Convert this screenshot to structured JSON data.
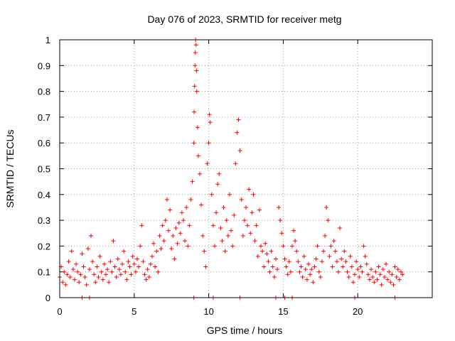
{
  "chart_data": {
    "type": "scatter",
    "title": "Day 076 of 2023, SRMTID for receiver metg",
    "xlabel": "GPS time / hours",
    "ylabel": "SRMTID / TECUs",
    "xlim": [
      0,
      25
    ],
    "ylim": [
      0,
      1
    ],
    "xticks": [
      0,
      5,
      10,
      15,
      20
    ],
    "xtick_labels": [
      "0",
      "5",
      "10",
      "15",
      "20"
    ],
    "yticks": [
      0,
      0.1,
      0.2,
      0.3,
      0.4,
      0.5,
      0.6,
      0.7,
      0.8,
      0.9,
      1
    ],
    "ytick_labels": [
      "0",
      "0.1",
      "0.2",
      "0.3",
      "0.4",
      "0.5",
      "0.6",
      "0.7",
      "0.8",
      "0.9",
      "1"
    ],
    "grid": true,
    "marker": "+",
    "color": "#ff0000",
    "series": [
      {
        "name": "SRMTID",
        "points": [
          [
            0.0,
            0.08
          ],
          [
            0.1,
            0.12
          ],
          [
            0.2,
            0.06
          ],
          [
            0.3,
            0.1
          ],
          [
            0.4,
            0.05
          ],
          [
            0.5,
            0.09
          ],
          [
            0.6,
            0.14
          ],
          [
            0.7,
            0.08
          ],
          [
            0.8,
            0.18
          ],
          [
            0.9,
            0.11
          ],
          [
            1.0,
            0.07
          ],
          [
            1.1,
            0.13
          ],
          [
            1.2,
            0.1
          ],
          [
            1.3,
            0.06
          ],
          [
            1.4,
            0.09
          ],
          [
            1.5,
            0.17
          ],
          [
            1.6,
            0.12
          ],
          [
            1.7,
            0.08
          ],
          [
            1.8,
            0.05
          ],
          [
            1.9,
            0.19
          ],
          [
            2.0,
            0.11
          ],
          [
            2.1,
            0.24
          ],
          [
            2.2,
            0.14
          ],
          [
            2.3,
            0.09
          ],
          [
            2.4,
            0.06
          ],
          [
            2.5,
            0.12
          ],
          [
            2.6,
            0.08
          ],
          [
            2.7,
            0.16
          ],
          [
            2.8,
            0.1
          ],
          [
            2.9,
            0.07
          ],
          [
            3.0,
            0.13
          ],
          [
            3.1,
            0.09
          ],
          [
            3.2,
            0.11
          ],
          [
            3.3,
            0.06
          ],
          [
            3.4,
            0.14
          ],
          [
            3.5,
            0.1
          ],
          [
            3.6,
            0.22
          ],
          [
            3.7,
            0.12
          ],
          [
            3.8,
            0.08
          ],
          [
            3.9,
            0.15
          ],
          [
            4.0,
            0.11
          ],
          [
            4.1,
            0.09
          ],
          [
            4.2,
            0.13
          ],
          [
            4.3,
            0.18
          ],
          [
            4.4,
            0.1
          ],
          [
            4.5,
            0.07
          ],
          [
            4.6,
            0.14
          ],
          [
            4.7,
            0.12
          ],
          [
            4.8,
            0.09
          ],
          [
            4.9,
            0.16
          ],
          [
            5.0,
            0.13
          ],
          [
            5.1,
            0.1
          ],
          [
            5.2,
            0.15
          ],
          [
            5.3,
            0.12
          ],
          [
            5.4,
            0.2
          ],
          [
            5.5,
            0.28
          ],
          [
            5.6,
            0.14
          ],
          [
            5.7,
            0.09
          ],
          [
            5.8,
            0.07
          ],
          [
            5.9,
            0.11
          ],
          [
            6.0,
            0.08
          ],
          [
            6.1,
            0.13
          ],
          [
            6.2,
            0.16
          ],
          [
            6.3,
            0.21
          ],
          [
            6.4,
            0.12
          ],
          [
            6.5,
            0.18
          ],
          [
            6.6,
            0.1
          ],
          [
            6.7,
            0.24
          ],
          [
            6.8,
            0.19
          ],
          [
            6.9,
            0.28
          ],
          [
            7.0,
            0.22
          ],
          [
            7.1,
            0.3
          ],
          [
            7.2,
            0.38
          ],
          [
            7.3,
            0.26
          ],
          [
            7.4,
            0.34
          ],
          [
            7.5,
            0.19
          ],
          [
            7.6,
            0.24
          ],
          [
            7.7,
            0.15
          ],
          [
            7.8,
            0.27
          ],
          [
            7.9,
            0.21
          ],
          [
            8.0,
            0.29
          ],
          [
            8.1,
            0.25
          ],
          [
            8.2,
            0.33
          ],
          [
            8.3,
            0.3
          ],
          [
            8.4,
            0.22
          ],
          [
            8.5,
            0.35
          ],
          [
            8.6,
            0.2
          ],
          [
            8.7,
            0.28
          ],
          [
            8.8,
            0.38
          ],
          [
            8.9,
            0.45
          ],
          [
            9.0,
            0.6
          ],
          [
            9.02,
            0.72
          ],
          [
            9.05,
            0.82
          ],
          [
            9.08,
            0.9
          ],
          [
            9.1,
            0.95
          ],
          [
            9.12,
            1.0
          ],
          [
            9.15,
            0.98
          ],
          [
            9.18,
            0.88
          ],
          [
            9.2,
            0.8
          ],
          [
            9.25,
            0.66
          ],
          [
            9.3,
            0.55
          ],
          [
            9.4,
            0.48
          ],
          [
            9.5,
            0.36
          ],
          [
            9.6,
            0.24
          ],
          [
            9.7,
            0.18
          ],
          [
            9.8,
            0.12
          ],
          [
            9.9,
            0.52
          ],
          [
            10.0,
            0.6
          ],
          [
            10.05,
            0.71
          ],
          [
            10.1,
            0.68
          ],
          [
            10.2,
            0.4
          ],
          [
            10.3,
            0.28
          ],
          [
            10.4,
            0.2
          ],
          [
            10.5,
            0.33
          ],
          [
            10.6,
            0.44
          ],
          [
            10.7,
            0.48
          ],
          [
            10.8,
            0.27
          ],
          [
            10.9,
            0.22
          ],
          [
            11.0,
            0.35
          ],
          [
            11.1,
            0.18
          ],
          [
            11.2,
            0.3
          ],
          [
            11.3,
            0.24
          ],
          [
            11.4,
            0.4
          ],
          [
            11.5,
            0.26
          ],
          [
            11.6,
            0.2
          ],
          [
            11.7,
            0.32
          ],
          [
            11.8,
            0.52
          ],
          [
            11.9,
            0.64
          ],
          [
            12.0,
            0.69
          ],
          [
            12.1,
            0.57
          ],
          [
            12.2,
            0.38
          ],
          [
            12.3,
            0.24
          ],
          [
            12.4,
            0.3
          ],
          [
            12.5,
            0.35
          ],
          [
            12.6,
            0.28
          ],
          [
            12.7,
            0.42
          ],
          [
            12.8,
            0.25
          ],
          [
            12.9,
            0.33
          ],
          [
            13.0,
            0.4
          ],
          [
            13.1,
            0.22
          ],
          [
            13.2,
            0.28
          ],
          [
            13.3,
            0.16
          ],
          [
            13.4,
            0.34
          ],
          [
            13.5,
            0.2
          ],
          [
            13.6,
            0.18
          ],
          [
            13.7,
            0.12
          ],
          [
            13.8,
            0.21
          ],
          [
            13.9,
            0.17
          ],
          [
            14.0,
            0.14
          ],
          [
            14.1,
            0.1
          ],
          [
            14.2,
            0.18
          ],
          [
            14.3,
            0.12
          ],
          [
            14.4,
            0.08
          ],
          [
            14.5,
            0.15
          ],
          [
            14.6,
            0.11
          ],
          [
            14.7,
            0.35
          ],
          [
            14.8,
            0.3
          ],
          [
            14.9,
            0.25
          ],
          [
            15.0,
            0.2
          ],
          [
            15.1,
            0.15
          ],
          [
            15.2,
            0.12
          ],
          [
            15.3,
            0.09
          ],
          [
            15.4,
            0.14
          ],
          [
            15.5,
            0.1
          ],
          [
            15.6,
            0.2
          ],
          [
            15.7,
            0.26
          ],
          [
            15.8,
            0.22
          ],
          [
            15.9,
            0.18
          ],
          [
            16.0,
            0.14
          ],
          [
            16.1,
            0.1
          ],
          [
            16.2,
            0.12
          ],
          [
            16.3,
            0.08
          ],
          [
            16.4,
            0.16
          ],
          [
            16.5,
            0.11
          ],
          [
            16.6,
            0.07
          ],
          [
            16.7,
            0.13
          ],
          [
            16.8,
            0.09
          ],
          [
            16.9,
            0.11
          ],
          [
            17.0,
            0.06
          ],
          [
            17.1,
            0.12
          ],
          [
            17.2,
            0.15
          ],
          [
            17.3,
            0.2
          ],
          [
            17.4,
            0.1
          ],
          [
            17.5,
            0.08
          ],
          [
            17.6,
            0.14
          ],
          [
            17.7,
            0.18
          ],
          [
            17.8,
            0.24
          ],
          [
            17.9,
            0.35
          ],
          [
            18.0,
            0.3
          ],
          [
            18.1,
            0.16
          ],
          [
            18.2,
            0.2
          ],
          [
            18.3,
            0.12
          ],
          [
            18.4,
            0.22
          ],
          [
            18.5,
            0.18
          ],
          [
            18.6,
            0.14
          ],
          [
            18.7,
            0.1
          ],
          [
            18.8,
            0.27
          ],
          [
            18.9,
            0.15
          ],
          [
            19.0,
            0.12
          ],
          [
            19.1,
            0.18
          ],
          [
            19.2,
            0.14
          ],
          [
            19.3,
            0.1
          ],
          [
            19.4,
            0.08
          ],
          [
            19.5,
            0.16
          ],
          [
            19.6,
            0.12
          ],
          [
            19.7,
            0.06
          ],
          [
            19.8,
            0.09
          ],
          [
            19.9,
            0.14
          ],
          [
            20.0,
            0.11
          ],
          [
            20.1,
            0.08
          ],
          [
            20.2,
            0.12
          ],
          [
            20.3,
            0.1
          ],
          [
            20.4,
            0.2
          ],
          [
            20.5,
            0.16
          ],
          [
            20.6,
            0.13
          ],
          [
            20.7,
            0.09
          ],
          [
            20.8,
            0.07
          ],
          [
            20.9,
            0.11
          ],
          [
            21.0,
            0.08
          ],
          [
            21.1,
            0.06
          ],
          [
            21.2,
            0.1
          ],
          [
            21.3,
            0.07
          ],
          [
            21.4,
            0.12
          ],
          [
            21.5,
            0.09
          ],
          [
            21.6,
            0.05
          ],
          [
            21.7,
            0.11
          ],
          [
            21.8,
            0.08
          ],
          [
            21.9,
            0.13
          ],
          [
            22.0,
            0.07
          ],
          [
            22.1,
            0.1
          ],
          [
            22.2,
            0.06
          ],
          [
            22.3,
            0.09
          ],
          [
            22.4,
            0.05
          ],
          [
            22.5,
            0.12
          ],
          [
            22.6,
            0.08
          ],
          [
            22.7,
            0.11
          ],
          [
            22.8,
            0.07
          ],
          [
            22.9,
            0.1
          ],
          [
            23.0,
            0.09
          ],
          [
            1.5,
            0.0
          ],
          [
            2.0,
            0.0
          ],
          [
            9.0,
            0.0
          ],
          [
            10.3,
            0.0
          ],
          [
            12.1,
            0.0
          ],
          [
            14.5,
            0.0
          ],
          [
            15.1,
            0.0
          ],
          [
            15.6,
            0.0
          ],
          [
            19.8,
            0.0
          ],
          [
            22.5,
            0.0
          ]
        ]
      }
    ]
  }
}
